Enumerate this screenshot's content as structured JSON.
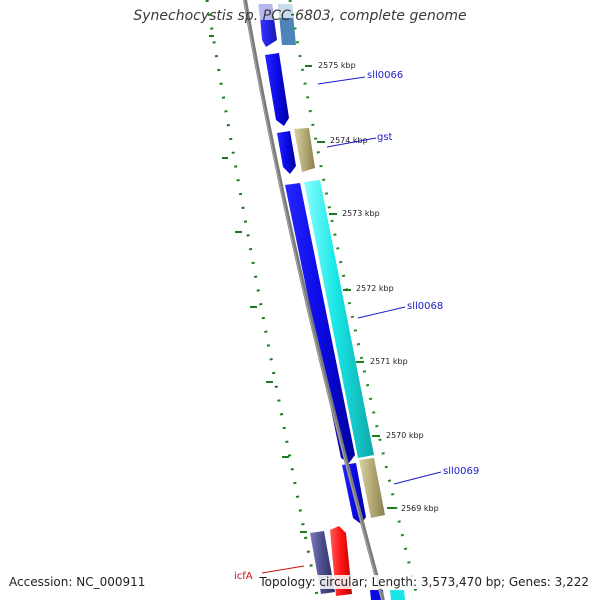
{
  "title": "Synechocystis sp. PCC 6803, complete genome",
  "accession": "Accession: NC_000911",
  "topology": "Topology: circular; Length: 3,573,470 bp; Genes: 3,222",
  "kbp_labels": [
    "2575 kbp",
    "2574 kbp",
    "2573 kbp",
    "2572 kbp",
    "2571 kbp",
    "2570 kbp",
    "2569 kbp"
  ],
  "gene_labels": [
    "sll0066",
    "gst",
    "sll0068",
    "sll0069",
    "icfA"
  ],
  "colors": {
    "backbone": "#7a7a7a",
    "tick": "#1f7a1f",
    "cds_blue": "#0a0ae6",
    "cds_cyan": "#19e6e6",
    "cds_tan": "#b3aa75",
    "cds_red": "#ff1515",
    "cds_navy": "#4b4b8c",
    "label_blue": "#1a1acc",
    "label_red": "#cc1111"
  }
}
